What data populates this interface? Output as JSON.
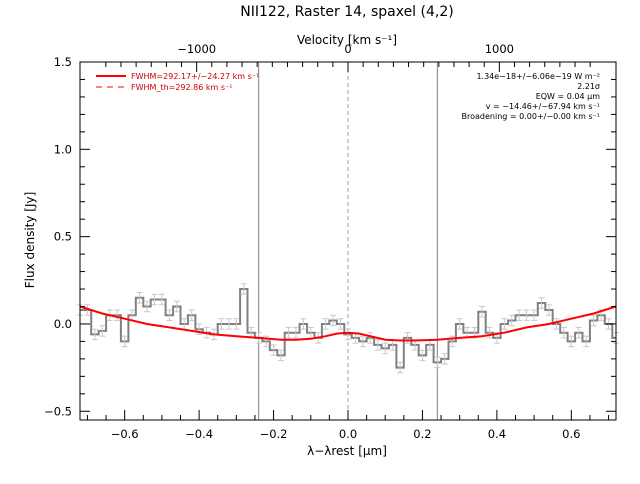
{
  "chart_data": {
    "type": "line",
    "title": "NII122, Raster 14, spaxel (4,2)",
    "xlabel": "λ−λrest [μm]",
    "ylabel": "Flux density [Jy]",
    "top_axis_label": "Velocity [km s⁻¹]",
    "xlim": [
      -0.72,
      0.72
    ],
    "ylim": [
      -0.55,
      1.5
    ],
    "x_ticks": [
      -0.6,
      -0.4,
      -0.2,
      0.0,
      0.2,
      0.4,
      0.6
    ],
    "x_tick_labels": [
      "−0.6",
      "−0.4",
      "−0.2",
      "0.0",
      "0.2",
      "0.4",
      "0.6"
    ],
    "y_ticks": [
      -0.5,
      0.0,
      0.5,
      1.0,
      1.5
    ],
    "y_tick_labels": [
      "−0.5",
      "0.0",
      "0.5",
      "1.0",
      "1.5"
    ],
    "top_ticks_kms": [
      -1000,
      0,
      1000
    ],
    "top_tick_labels": [
      "−1000",
      "0",
      "1000"
    ],
    "grid": false,
    "legend_position": "top-left",
    "legend": [
      {
        "label": "FWHM=292.17+/−24.27 km s⁻¹",
        "style": "solid",
        "color": "#ff0000"
      },
      {
        "label": "FWHM_th=292.86 km s⁻¹",
        "style": "dashed",
        "color": "#ff0000"
      }
    ],
    "annotations": [
      "1.34e−18+/−6.06e−19 W m⁻²",
      "2.21σ",
      "EQW = 0.04 μm",
      "v = −14.46+/−67.94 km s⁻¹",
      "Broadening = 0.00+/−0.00 km s⁻¹"
    ],
    "vertical_lines": [
      {
        "x": -0.24,
        "style": "solid",
        "color": "#808080"
      },
      {
        "x": 0.0,
        "style": "dashed",
        "color": "#a0a0a0"
      },
      {
        "x": 0.24,
        "style": "solid",
        "color": "#808080"
      }
    ],
    "series": [
      {
        "name": "spectrum",
        "kind": "step",
        "color": "#808080",
        "error": 0.03,
        "x": [
          -0.72,
          -0.7,
          -0.68,
          -0.66,
          -0.64,
          -0.62,
          -0.6,
          -0.58,
          -0.56,
          -0.54,
          -0.52,
          -0.5,
          -0.48,
          -0.46,
          -0.44,
          -0.42,
          -0.4,
          -0.38,
          -0.36,
          -0.34,
          -0.32,
          -0.3,
          -0.28,
          -0.26,
          -0.24,
          -0.22,
          -0.2,
          -0.18,
          -0.16,
          -0.14,
          -0.12,
          -0.1,
          -0.08,
          -0.06,
          -0.04,
          -0.02,
          0.0,
          0.02,
          0.04,
          0.06,
          0.08,
          0.1,
          0.12,
          0.14,
          0.16,
          0.18,
          0.2,
          0.22,
          0.24,
          0.26,
          0.28,
          0.3,
          0.32,
          0.34,
          0.36,
          0.38,
          0.4,
          0.42,
          0.44,
          0.46,
          0.48,
          0.5,
          0.52,
          0.54,
          0.56,
          0.58,
          0.6,
          0.62,
          0.64,
          0.66,
          0.68,
          0.7,
          0.72
        ],
        "y": [
          0.08,
          0.08,
          -0.06,
          -0.04,
          0.05,
          0.05,
          -0.1,
          0.05,
          0.15,
          0.1,
          0.14,
          0.14,
          0.05,
          0.1,
          0.0,
          0.05,
          -0.03,
          -0.05,
          -0.06,
          0.0,
          0.0,
          0.0,
          0.2,
          -0.05,
          -0.08,
          -0.1,
          -0.15,
          -0.18,
          -0.05,
          -0.05,
          0.0,
          -0.05,
          -0.08,
          0.0,
          0.02,
          0.0,
          -0.06,
          -0.08,
          -0.1,
          -0.08,
          -0.12,
          -0.14,
          -0.12,
          -0.25,
          -0.08,
          -0.12,
          -0.18,
          -0.12,
          -0.22,
          -0.2,
          -0.1,
          0.0,
          -0.05,
          -0.05,
          0.07,
          -0.05,
          -0.08,
          0.0,
          0.02,
          0.05,
          0.05,
          0.05,
          0.12,
          0.08,
          0.0,
          -0.05,
          -0.1,
          -0.05,
          -0.1,
          0.02,
          0.05,
          0.0,
          -0.08
        ]
      },
      {
        "name": "fit",
        "kind": "line",
        "color": "#ff0000",
        "x": [
          -0.72,
          -0.66,
          -0.6,
          -0.54,
          -0.48,
          -0.42,
          -0.36,
          -0.3,
          -0.24,
          -0.18,
          -0.14,
          -0.1,
          -0.06,
          -0.03,
          0.0,
          0.03,
          0.06,
          0.1,
          0.14,
          0.18,
          0.24,
          0.3,
          0.36,
          0.42,
          0.48,
          0.54,
          0.6,
          0.66,
          0.72
        ],
        "y": [
          0.1,
          0.06,
          0.03,
          0.0,
          -0.02,
          -0.04,
          -0.06,
          -0.07,
          -0.08,
          -0.09,
          -0.09,
          -0.085,
          -0.07,
          -0.055,
          -0.05,
          -0.055,
          -0.07,
          -0.09,
          -0.095,
          -0.095,
          -0.09,
          -0.08,
          -0.07,
          -0.05,
          -0.02,
          0.0,
          0.03,
          0.06,
          0.1
        ]
      }
    ]
  }
}
